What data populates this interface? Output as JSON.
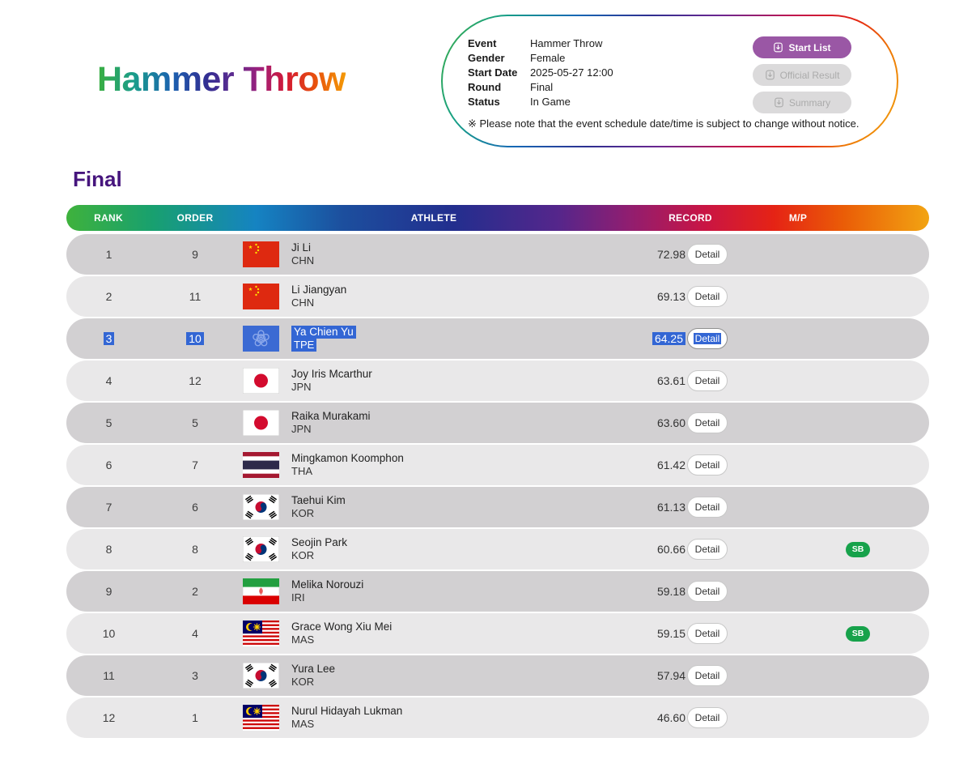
{
  "title": "Hammer Throw",
  "event_info": {
    "fields": [
      {
        "label": "Event",
        "value": "Hammer Throw"
      },
      {
        "label": "Gender",
        "value": "Female"
      },
      {
        "label": "Start Date",
        "value": "2025-05-27 12:00"
      },
      {
        "label": "Round",
        "value": "Final"
      },
      {
        "label": "Status",
        "value": "In Game"
      }
    ],
    "buttons": [
      {
        "label": "Start List",
        "enabled": true
      },
      {
        "label": "Official Result",
        "enabled": false
      },
      {
        "label": "Summary",
        "enabled": false
      }
    ],
    "note": "※ Please note that the event schedule date/time is subject to change without notice."
  },
  "section_title": "Final",
  "table": {
    "columns": [
      "RANK",
      "ORDER",
      "ATHLETE",
      "RECORD",
      "M/P"
    ],
    "detail_label": "Detail",
    "rows": [
      {
        "rank": "1",
        "order": "9",
        "name": "Ji Li",
        "noc": "CHN",
        "flag": "chn",
        "record": "72.98",
        "mp": "",
        "selected": false
      },
      {
        "rank": "2",
        "order": "11",
        "name": "Li Jiangyan",
        "noc": "CHN",
        "flag": "chn",
        "record": "69.13",
        "mp": "",
        "selected": false
      },
      {
        "rank": "3",
        "order": "10",
        "name": "Ya Chien Yu",
        "noc": "TPE",
        "flag": "tpe",
        "record": "64.25",
        "mp": "",
        "selected": true
      },
      {
        "rank": "4",
        "order": "12",
        "name": "Joy Iris Mcarthur",
        "noc": "JPN",
        "flag": "jpn",
        "record": "63.61",
        "mp": "",
        "selected": false
      },
      {
        "rank": "5",
        "order": "5",
        "name": "Raika Murakami",
        "noc": "JPN",
        "flag": "jpn",
        "record": "63.60",
        "mp": "",
        "selected": false
      },
      {
        "rank": "6",
        "order": "7",
        "name": "Mingkamon Koomphon",
        "noc": "THA",
        "flag": "tha",
        "record": "61.42",
        "mp": "",
        "selected": false
      },
      {
        "rank": "7",
        "order": "6",
        "name": "Taehui Kim",
        "noc": "KOR",
        "flag": "kor",
        "record": "61.13",
        "mp": "",
        "selected": false
      },
      {
        "rank": "8",
        "order": "8",
        "name": "Seojin Park",
        "noc": "KOR",
        "flag": "kor",
        "record": "60.66",
        "mp": "SB",
        "selected": false
      },
      {
        "rank": "9",
        "order": "2",
        "name": "Melika Norouzi",
        "noc": "IRI",
        "flag": "iri",
        "record": "59.18",
        "mp": "",
        "selected": false
      },
      {
        "rank": "10",
        "order": "4",
        "name": "Grace Wong Xiu Mei",
        "noc": "MAS",
        "flag": "mas",
        "record": "59.15",
        "mp": "SB",
        "selected": false
      },
      {
        "rank": "11",
        "order": "3",
        "name": "Yura Lee",
        "noc": "KOR",
        "flag": "kor",
        "record": "57.94",
        "mp": "",
        "selected": false
      },
      {
        "rank": "12",
        "order": "1",
        "name": "Nurul Hidayah Lukman",
        "noc": "MAS",
        "flag": "mas",
        "record": "46.60",
        "mp": "",
        "selected": false
      }
    ]
  },
  "colors": {
    "accent_purple": "#9a57a5",
    "selection_blue": "#3366d4",
    "sb_green": "#17a24b",
    "heading_purple": "#46157d",
    "row_dark": "#d2d0d2",
    "row_light": "#e9e8e9"
  }
}
